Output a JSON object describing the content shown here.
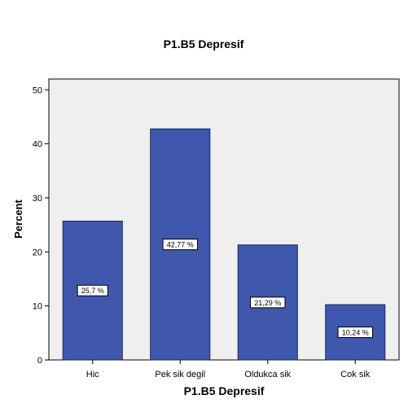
{
  "chart_data": {
    "type": "bar",
    "title": "P1.B5 Depresif",
    "xlabel": "P1.B5 Depresif",
    "ylabel": "Percent",
    "categories": [
      "Hic",
      "Pek sik degil",
      "Oldukca sik",
      "Cok sik"
    ],
    "values": [
      25.7,
      42.77,
      21.29,
      10.24
    ],
    "data_labels": [
      "25,7 %",
      "42,77 %",
      "21,29 %",
      "10,24 %"
    ],
    "ylim": [
      0,
      52
    ],
    "yticks": [
      0,
      10,
      20,
      30,
      40,
      50
    ],
    "ytick_labels": [
      "0",
      "10",
      "20",
      "30",
      "40",
      "50"
    ],
    "grid": false,
    "colors": {
      "bar_fill": "#3f57ad",
      "bar_stroke": "#1f2b5a",
      "plot_bg": "#efefef",
      "axis": "#000000"
    }
  }
}
